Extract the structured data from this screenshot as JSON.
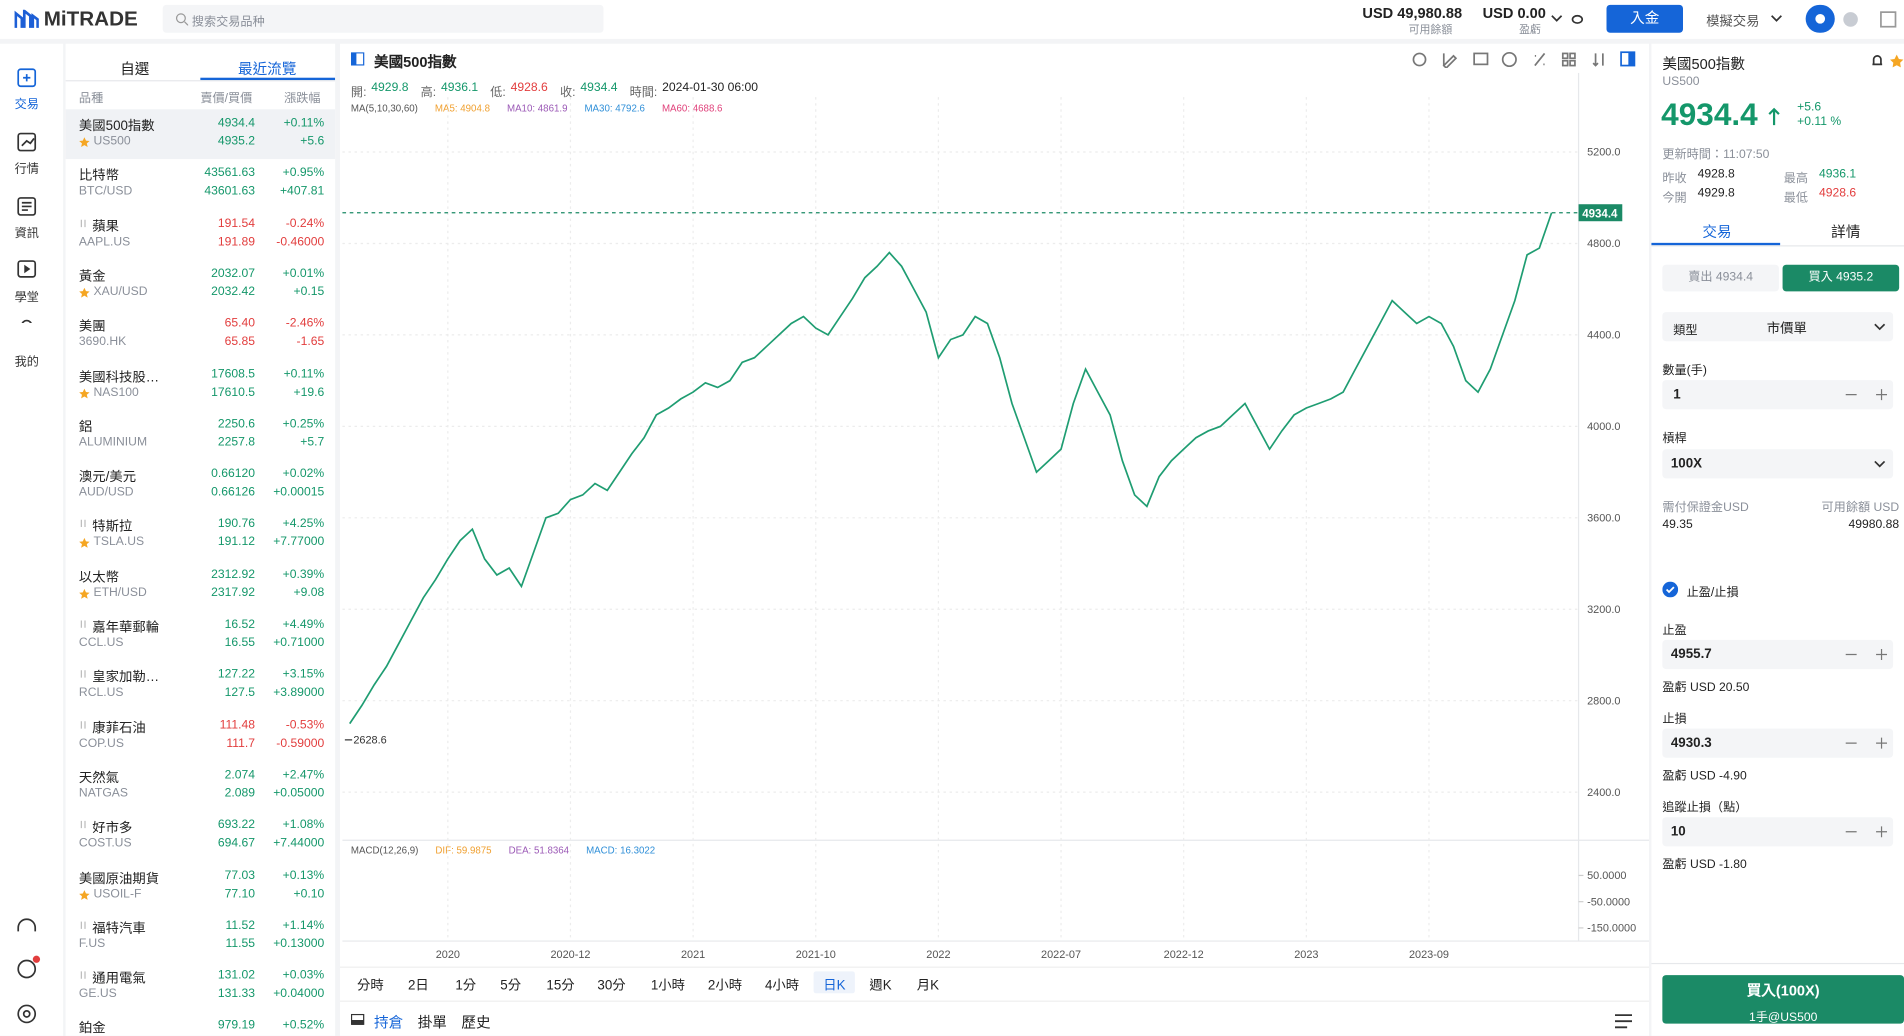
{
  "header": {
    "logo": "MiTRADE",
    "search_placeholder": "搜索交易品种",
    "balance": "USD 49,980.88",
    "balance_label": "可用餘額",
    "pnl": "USD 0.00",
    "pnl_label": "盈虧",
    "deposit": "入金",
    "mode": "模擬交易"
  },
  "nav": [
    "交易",
    "行情",
    "資訊",
    "學堂",
    "我的"
  ],
  "watchlist": {
    "tabs": [
      "自選",
      "最近流覽"
    ],
    "headers": [
      "品種",
      "賣價/買價",
      "漲跌幅"
    ],
    "rows": [
      {
        "name": "美國500指數",
        "code": "US500",
        "sell": "4934.4",
        "buy": "4935.2",
        "pct": "+0.11%",
        "change": "+5.6",
        "starred": true,
        "closed": false
      },
      {
        "name": "比特幣",
        "code": "BTC/USD",
        "sell": "43561.63",
        "buy": "43601.63",
        "pct": "+0.95%",
        "change": "+407.81",
        "starred": false,
        "closed": false
      },
      {
        "name": "蘋果",
        "code": "AAPL.US",
        "sell": "191.54",
        "buy": "191.89",
        "pct": "-0.24%",
        "change": "-0.46000",
        "starred": false,
        "closed": true
      },
      {
        "name": "黃金",
        "code": "XAU/USD",
        "sell": "2032.07",
        "buy": "2032.42",
        "pct": "+0.01%",
        "change": "+0.15",
        "starred": true,
        "closed": false
      },
      {
        "name": "美團",
        "code": "3690.HK",
        "sell": "65.40",
        "buy": "65.85",
        "pct": "-2.46%",
        "change": "-1.65",
        "starred": false,
        "closed": false
      },
      {
        "name": "美國科技股…",
        "code": "NAS100",
        "sell": "17608.5",
        "buy": "17610.5",
        "pct": "+0.11%",
        "change": "+19.6",
        "starred": true,
        "closed": false
      },
      {
        "name": "鋁",
        "code": "ALUMINIUM",
        "sell": "2250.6",
        "buy": "2257.8",
        "pct": "+0.25%",
        "change": "+5.7",
        "starred": false,
        "closed": false
      },
      {
        "name": "澳元/美元",
        "code": "AUD/USD",
        "sell": "0.66120",
        "buy": "0.66126",
        "pct": "+0.02%",
        "change": "+0.00015",
        "starred": false,
        "closed": false
      },
      {
        "name": "特斯拉",
        "code": "TSLA.US",
        "sell": "190.76",
        "buy": "191.12",
        "pct": "+4.25%",
        "change": "+7.77000",
        "starred": true,
        "closed": true
      },
      {
        "name": "以太幣",
        "code": "ETH/USD",
        "sell": "2312.92",
        "buy": "2317.92",
        "pct": "+0.39%",
        "change": "+9.08",
        "starred": true,
        "closed": false
      },
      {
        "name": "嘉年華郵輪",
        "code": "CCL.US",
        "sell": "16.52",
        "buy": "16.55",
        "pct": "+4.49%",
        "change": "+0.71000",
        "starred": false,
        "closed": true
      },
      {
        "name": "皇家加勒…",
        "code": "RCL.US",
        "sell": "127.22",
        "buy": "127.5",
        "pct": "+3.15%",
        "change": "+3.89000",
        "starred": false,
        "closed": true
      },
      {
        "name": "康菲石油",
        "code": "COP.US",
        "sell": "111.48",
        "buy": "111.7",
        "pct": "-0.53%",
        "change": "-0.59000",
        "starred": false,
        "closed": true
      },
      {
        "name": "天然氣",
        "code": "NATGAS",
        "sell": "2.074",
        "buy": "2.089",
        "pct": "+2.47%",
        "change": "+0.05000",
        "starred": false,
        "closed": false
      },
      {
        "name": "好市多",
        "code": "COST.US",
        "sell": "693.22",
        "buy": "694.67",
        "pct": "+1.08%",
        "change": "+7.44000",
        "starred": false,
        "closed": true
      },
      {
        "name": "美國原油期貨",
        "code": "USOIL-F",
        "sell": "77.03",
        "buy": "77.10",
        "pct": "+0.13%",
        "change": "+0.10",
        "starred": true,
        "closed": false
      },
      {
        "name": "福特汽車",
        "code": "F.US",
        "sell": "11.52",
        "buy": "11.55",
        "pct": "+1.14%",
        "change": "+0.13000",
        "starred": false,
        "closed": true
      },
      {
        "name": "通用電氣",
        "code": "GE.US",
        "sell": "131.02",
        "buy": "131.33",
        "pct": "+0.03%",
        "change": "+0.04000",
        "starred": false,
        "closed": true
      },
      {
        "name": "鉑金",
        "code": null,
        "sell": "979.19",
        "buy": null,
        "pct": "+0.52%",
        "change": null,
        "starred": false,
        "closed": false
      }
    ]
  },
  "chart_header": {
    "title": "美國500指數",
    "ohlc": [
      "開:",
      "4929.8",
      "高:",
      "4936.1",
      "低:",
      "4928.6",
      "收:",
      "4934.4",
      "時間:",
      "2024-01-30 06:00"
    ],
    "ma": [
      "MA(5,10,30,60)",
      "MA5: 4904.8",
      "MA10: 4861.9",
      "MA30: 4792.6",
      "MA60: 4688.6"
    ],
    "macd": [
      "MACD(12,26,9)",
      "DIF: 59.9875",
      "DEA: 51.8364",
      "MACD: 16.3022"
    ],
    "periods": [
      "分時",
      "2日",
      "1分",
      "5分",
      "15分",
      "30分",
      "1小時",
      "2小時",
      "4小時",
      "日K",
      "週K",
      "月K"
    ],
    "bottom_tabs": [
      "持倉",
      "掛單",
      "歷史"
    ]
  },
  "chart_data": {
    "type": "line",
    "color": "#1f9d72",
    "grid": true,
    "categories": [
      null,
      null,
      null,
      null,
      null,
      null,
      null,
      null,
      "2020",
      null,
      null,
      null,
      null,
      null,
      null,
      null,
      null,
      null,
      "2020-12",
      null,
      null,
      null,
      null,
      null,
      null,
      null,
      null,
      null,
      "2021",
      null,
      null,
      null,
      null,
      null,
      null,
      null,
      null,
      null,
      "2021-10",
      null,
      null,
      null,
      null,
      null,
      null,
      null,
      null,
      null,
      "2022",
      null,
      null,
      null,
      null,
      null,
      null,
      null,
      null,
      null,
      "2022-07",
      null,
      null,
      null,
      null,
      null,
      null,
      null,
      null,
      null,
      "2022-12",
      null,
      null,
      null,
      null,
      null,
      null,
      null,
      null,
      null,
      "2023",
      null,
      null,
      null,
      null,
      null,
      null,
      null,
      null,
      null,
      "2023-09",
      null,
      null,
      null,
      null,
      null,
      null,
      null,
      null,
      null,
      null
    ],
    "values": [
      2700,
      2780,
      2870,
      2950,
      3050,
      3150,
      3250,
      3330,
      3420,
      3500,
      3550,
      3420,
      3350,
      3380,
      3300,
      3450,
      3600,
      3620,
      3680,
      3700,
      3750,
      3720,
      3800,
      3880,
      3950,
      4050,
      4080,
      4120,
      4150,
      4190,
      4170,
      4200,
      4280,
      4300,
      4350,
      4400,
      4450,
      4480,
      4430,
      4400,
      4480,
      4560,
      4650,
      4700,
      4760,
      4700,
      4600,
      4500,
      4300,
      4380,
      4400,
      4480,
      4450,
      4300,
      4100,
      3950,
      3800,
      3850,
      3900,
      4100,
      4250,
      4150,
      4050,
      3850,
      3700,
      3650,
      3780,
      3850,
      3900,
      3950,
      3980,
      4000,
      4050,
      4100,
      4000,
      3900,
      3980,
      4050,
      4080,
      4100,
      4120,
      4150,
      4250,
      4350,
      4450,
      4550,
      4500,
      4450,
      4480,
      4450,
      4350,
      4200,
      4150,
      4250,
      4400,
      4550,
      4750,
      4780,
      4934.4
    ],
    "low_marker": 2628.6,
    "ylim": [
      2200,
      5440
    ],
    "yticks": [
      {
        "value": 2400,
        "label": "2400.0"
      },
      {
        "value": 2800,
        "label": "2800.0"
      },
      {
        "value": 3200,
        "label": "3200.0"
      },
      {
        "value": 3600,
        "label": "3600.0"
      },
      {
        "value": 4000,
        "label": "4000.0"
      },
      {
        "value": 4400,
        "label": "4400.0"
      },
      {
        "value": 4800,
        "label": "4800.0"
      },
      {
        "value": 5200,
        "label": "5200.0"
      }
    ],
    "macd_ylim": [
      -200,
      170
    ],
    "macd_yticks": [
      {
        "value": 50,
        "label": "50.0000"
      },
      {
        "value": -50,
        "label": "-50.0000"
      },
      {
        "value": -150,
        "label": "-150.0000"
      }
    ]
  },
  "detail": {
    "title": "美國500指數",
    "code": "US500",
    "price": "4934.4",
    "change": "+5.6",
    "pct": "+0.11 %",
    "updated": "更新時間：11:07:50",
    "stats": [
      [
        "昨收",
        "4928.8",
        "最高",
        "4936.1"
      ],
      [
        "今開",
        "4929.8",
        "最低",
        "4928.6"
      ]
    ],
    "tabs": [
      "交易",
      "詳情"
    ],
    "sell": "賣出 4934.4",
    "buy": "買入 4935.2",
    "type_label": "類型",
    "type_value": "市價單",
    "qty_label": "數量(手)",
    "qty": "1",
    "leverage_label": "槓桿",
    "leverage": "100X",
    "margin_label": "需付保證金USD",
    "available_label": "可用餘額 USD",
    "margin": "49.35",
    "available": "49980.88",
    "tpsl": "止盈/止損",
    "tp_label": "止盈",
    "tp": "4955.7",
    "tp_pnl": "盈虧 USD 20.50",
    "sl_label": "止損",
    "sl": "4930.3",
    "sl_pnl": "盈虧 USD -4.90",
    "trail_label": "追蹤止損（點）",
    "trail": "10",
    "trail_pnl": "盈虧 USD -1.80",
    "submit": "買入(100X)",
    "submit_sub": "1手@US500"
  }
}
